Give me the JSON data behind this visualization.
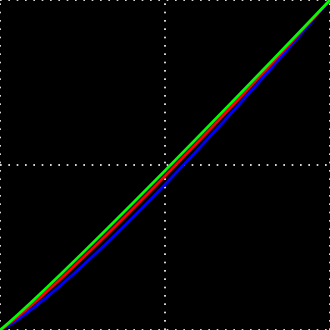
{
  "background_color": "#000000",
  "grid_color": "#ffffff",
  "xlim": [
    0,
    1
  ],
  "ylim": [
    0,
    1
  ],
  "figsize": [
    3.3,
    3.3
  ],
  "dpi": 100,
  "curve_points": 512,
  "red_gamma": 1.1,
  "green_gamma": 1.05,
  "blue_gamma": 1.18,
  "red_color": "#ff0000",
  "green_color": "#00ff00",
  "blue_color": "#0000ff",
  "line_width": 2.0,
  "grid_linewidth": 1.2,
  "border_linewidth": 1.2
}
